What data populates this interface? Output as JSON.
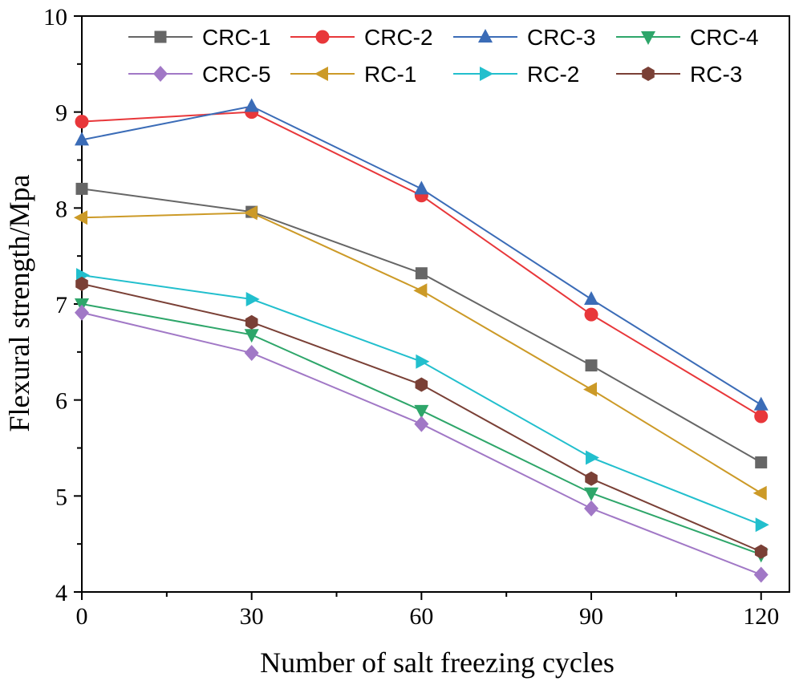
{
  "chart_data": {
    "type": "line",
    "title": "",
    "xlabel": "Number of salt freezing cycles",
    "ylabel": "Flexural strength/Mpa",
    "x": [
      0,
      30,
      60,
      90,
      120
    ],
    "xticks": [
      "0",
      "30",
      "60",
      "90",
      "120"
    ],
    "yticks": [
      "4",
      "5",
      "6",
      "7",
      "8",
      "9",
      "10"
    ],
    "xlim": [
      0,
      125
    ],
    "ylim": [
      4,
      10
    ],
    "grid": false,
    "legend_position": "top",
    "series": [
      {
        "name": "CRC-1",
        "color": "#666666",
        "marker": "square",
        "values": [
          8.2,
          7.96,
          7.32,
          6.36,
          5.35
        ]
      },
      {
        "name": "CRC-2",
        "color": "#e8373a",
        "marker": "circle",
        "values": [
          8.9,
          9.0,
          8.13,
          6.89,
          5.83
        ]
      },
      {
        "name": "CRC-3",
        "color": "#3b6cb7",
        "marker": "triangle-up",
        "values": [
          8.71,
          9.06,
          8.2,
          7.05,
          5.95
        ]
      },
      {
        "name": "CRC-4",
        "color": "#2ea66a",
        "marker": "triangle-down",
        "values": [
          7.0,
          6.68,
          5.89,
          5.03,
          4.39
        ]
      },
      {
        "name": "CRC-5",
        "color": "#a178c6",
        "marker": "diamond",
        "values": [
          6.91,
          6.49,
          5.75,
          4.87,
          4.18
        ]
      },
      {
        "name": "RC-1",
        "color": "#cc9a27",
        "marker": "triangle-left",
        "values": [
          7.9,
          7.95,
          7.14,
          6.11,
          5.03
        ]
      },
      {
        "name": "RC-2",
        "color": "#22bfcd",
        "marker": "triangle-right",
        "values": [
          7.3,
          7.05,
          6.4,
          5.4,
          4.7
        ]
      },
      {
        "name": "RC-3",
        "color": "#7a4036",
        "marker": "hexagon",
        "values": [
          7.21,
          6.81,
          6.16,
          5.18,
          4.42
        ]
      }
    ]
  }
}
